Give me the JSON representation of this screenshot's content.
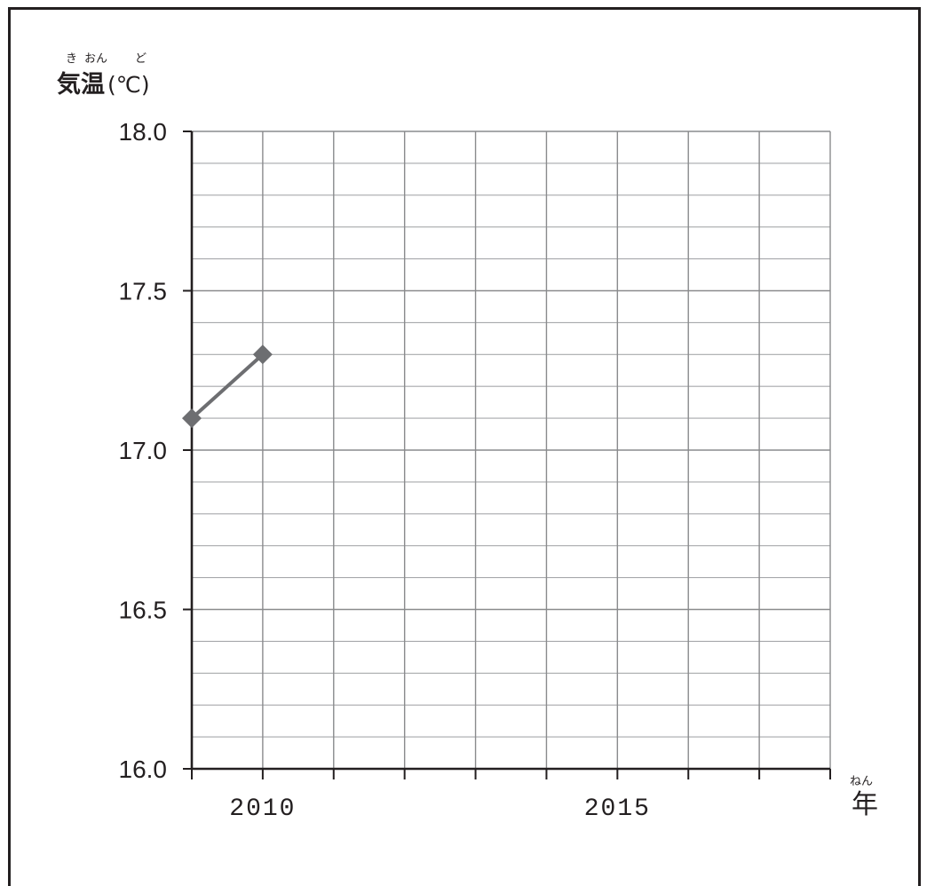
{
  "chart_data": {
    "type": "line",
    "ylabel": {
      "text": "気温",
      "ruby": [
        "き",
        "おん"
      ],
      "unit": "(℃)",
      "unit_ruby": "ど"
    },
    "xlabel": {
      "text": "年",
      "ruby": "ねん"
    },
    "ylim": [
      16.0,
      18.0
    ],
    "y_ticks": [
      "18.0",
      "17.5",
      "17.0",
      "16.5",
      "16.0"
    ],
    "y_minor_step": 0.1,
    "xlim": [
      2009,
      2018
    ],
    "x_tick_years": [
      2009,
      2010,
      2011,
      2012,
      2013,
      2014,
      2015,
      2016,
      2017,
      2018
    ],
    "x_tick_labels": [
      {
        "x": 2010,
        "label": "2010"
      },
      {
        "x": 2015,
        "label": "2015"
      }
    ],
    "grid": true,
    "series": [
      {
        "x": [
          2009,
          2010
        ],
        "y": [
          17.1,
          17.3
        ],
        "color": "#6d6e71",
        "marker": "diamond"
      }
    ]
  }
}
